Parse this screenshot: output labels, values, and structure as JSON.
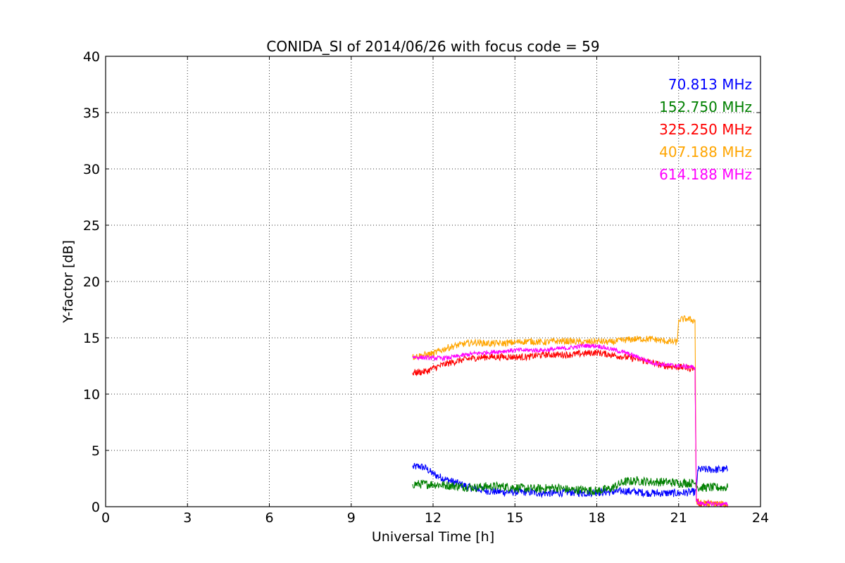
{
  "chart_data": {
    "type": "line",
    "title": "CONIDA_SI of 2014/06/26 with focus code = 59",
    "xlabel": "Universal Time [h]",
    "ylabel": "Y-factor [dB]",
    "xlim": [
      0,
      24
    ],
    "ylim": [
      0,
      40
    ],
    "xticks": [
      0,
      3,
      6,
      9,
      12,
      15,
      18,
      21,
      24
    ],
    "yticks": [
      0,
      5,
      10,
      15,
      20,
      25,
      30,
      35,
      40
    ],
    "grid": true,
    "legend_position": "top-right",
    "series": [
      {
        "name": "70.813 MHz",
        "color": "#0000ff",
        "noise": 0.35,
        "x": [
          11.25,
          11.5,
          11.75,
          12.0,
          12.5,
          13.0,
          13.5,
          14.0,
          14.5,
          15.0,
          15.5,
          16.0,
          16.5,
          17.0,
          17.5,
          18.0,
          18.5,
          19.0,
          19.5,
          20.0,
          20.5,
          21.0,
          21.5,
          21.65,
          21.7,
          22.8
        ],
        "y": [
          3.5,
          3.6,
          3.4,
          2.9,
          2.4,
          2.0,
          1.6,
          1.4,
          1.3,
          1.3,
          1.3,
          1.2,
          1.2,
          1.3,
          1.2,
          1.3,
          1.3,
          1.4,
          1.3,
          1.2,
          1.2,
          1.2,
          1.3,
          1.3,
          3.3,
          3.3
        ]
      },
      {
        "name": "152.750 MHz",
        "color": "#008000",
        "noise": 0.4,
        "x": [
          11.25,
          12.0,
          12.5,
          13.0,
          13.5,
          14.0,
          14.5,
          15.0,
          15.5,
          16.0,
          16.5,
          17.0,
          17.5,
          18.0,
          18.5,
          19.0,
          19.5,
          20.0,
          20.5,
          21.0,
          21.5,
          21.65,
          21.7,
          22.8
        ],
        "y": [
          2.0,
          2.0,
          1.9,
          1.8,
          1.7,
          1.8,
          1.8,
          1.7,
          1.6,
          1.6,
          1.7,
          1.5,
          1.5,
          1.4,
          1.6,
          2.2,
          2.3,
          2.2,
          2.2,
          2.1,
          2.1,
          2.1,
          1.7,
          1.7
        ]
      },
      {
        "name": "325.250 MHz",
        "color": "#ff0000",
        "noise": 0.3,
        "x": [
          11.25,
          11.75,
          12.0,
          12.5,
          13.0,
          13.5,
          14.0,
          14.5,
          15.0,
          15.5,
          16.0,
          16.5,
          17.0,
          17.5,
          18.0,
          18.5,
          19.0,
          19.5,
          20.0,
          20.5,
          21.0,
          21.5,
          21.6,
          21.65,
          21.75,
          22.8
        ],
        "y": [
          11.9,
          12.0,
          12.3,
          12.7,
          13.0,
          13.2,
          13.3,
          13.3,
          13.3,
          13.3,
          13.5,
          13.5,
          13.5,
          13.6,
          13.7,
          13.5,
          13.3,
          13.1,
          12.8,
          12.5,
          12.4,
          12.3,
          12.3,
          0.5,
          0.3,
          0.2
        ]
      },
      {
        "name": "407.188 MHz",
        "color": "#ffa500",
        "noise": 0.3,
        "x": [
          11.25,
          12.0,
          12.5,
          13.0,
          13.5,
          14.0,
          14.5,
          15.0,
          15.5,
          16.0,
          16.5,
          17.0,
          17.5,
          18.0,
          18.5,
          19.0,
          19.5,
          20.0,
          20.5,
          20.95,
          21.0,
          21.3,
          21.6,
          21.65,
          21.75,
          22.8
        ],
        "y": [
          13.3,
          13.6,
          14.1,
          14.4,
          14.6,
          14.5,
          14.5,
          14.6,
          14.7,
          14.6,
          14.7,
          14.7,
          14.6,
          14.7,
          14.6,
          14.8,
          14.9,
          14.9,
          14.7,
          14.6,
          16.6,
          16.7,
          16.5,
          0.5,
          0.3,
          0.2
        ]
      },
      {
        "name": "614.188 MHz",
        "color": "#ff00ff",
        "noise": 0.2,
        "x": [
          11.25,
          12.0,
          12.5,
          13.0,
          13.5,
          14.0,
          14.5,
          15.0,
          15.5,
          16.0,
          16.5,
          17.0,
          17.5,
          18.0,
          18.5,
          19.0,
          19.5,
          20.0,
          20.5,
          21.0,
          21.5,
          21.6,
          21.65,
          21.75,
          22.8
        ],
        "y": [
          13.3,
          13.2,
          13.2,
          13.4,
          13.6,
          13.7,
          13.8,
          13.9,
          13.9,
          13.9,
          14.0,
          14.1,
          14.3,
          14.3,
          14.0,
          13.7,
          13.3,
          12.8,
          12.6,
          12.5,
          12.4,
          12.4,
          0.5,
          0.3,
          0.2
        ]
      }
    ]
  }
}
